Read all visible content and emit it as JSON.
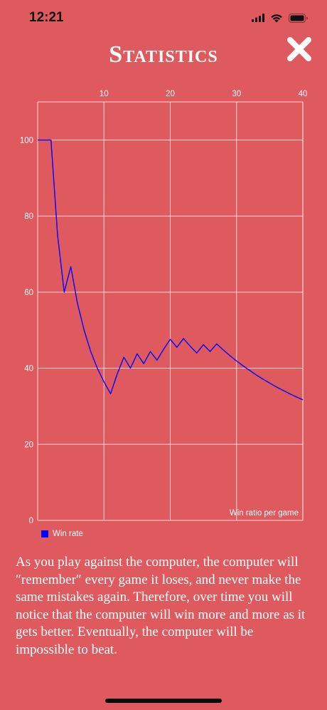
{
  "status": {
    "time": "12:21",
    "icons": [
      "signal-icon",
      "wifi-icon",
      "battery-icon"
    ]
  },
  "title": "Statistics",
  "close_icon": "close-icon",
  "chart_data": {
    "type": "line",
    "annotation": "Win ratio per game",
    "xlim": [
      0,
      40
    ],
    "ylim": [
      0,
      110
    ],
    "x_ticks": [
      10,
      20,
      30,
      40
    ],
    "y_ticks": [
      0,
      20,
      40,
      60,
      80,
      100
    ],
    "x_axis_position": "top",
    "grid": true,
    "legend_position": "bottom-left",
    "series": [
      {
        "name": "Win rate",
        "color": "#0000ff",
        "x": [
          0,
          1,
          2,
          3,
          4,
          5,
          6,
          7,
          8,
          9,
          10,
          11,
          12,
          13,
          14,
          15,
          16,
          17,
          18,
          19,
          20,
          21,
          22,
          23,
          24,
          25,
          26,
          27,
          28,
          29,
          30,
          31,
          32,
          33,
          34,
          35,
          36,
          37,
          38,
          39,
          40
        ],
        "values": [
          100,
          100,
          100,
          75,
          60,
          66.7,
          57.1,
          50,
          44.4,
          40,
          36.4,
          33.3,
          38.5,
          42.9,
          40,
          43.8,
          41.2,
          44.4,
          42.1,
          45,
          47.6,
          45.5,
          47.8,
          45.8,
          44,
          46.2,
          44.4,
          46.4,
          44.8,
          43.3,
          41.9,
          40.6,
          39.4,
          38.2,
          37.1,
          36.1,
          35.1,
          34.2,
          33.3,
          32.5,
          31.7
        ]
      }
    ]
  },
  "description": "As you play against the computer, the computer will ″remember″ every game it loses, and never make the same mistakes again. Therefore, over time you will notice that the computer will win more and more as it gets better. Eventually, the computer will be impossible to beat."
}
